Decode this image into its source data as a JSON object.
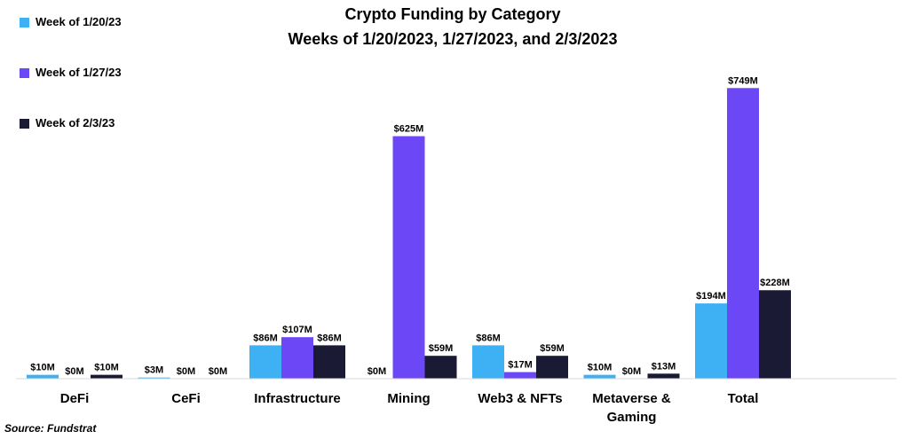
{
  "chart_data": {
    "type": "bar",
    "title": "Crypto Funding by Category",
    "subtitle": "Weeks of 1/20/2023, 1/27/2023, and 2/3/2023",
    "xlabel": "",
    "ylabel": "",
    "unit": "$M",
    "categories": [
      [
        "DeFi"
      ],
      [
        "CeFi"
      ],
      [
        "Infrastructure"
      ],
      [
        "Mining"
      ],
      [
        "Web3 & NFTs"
      ],
      [
        "Metaverse &",
        "Gaming"
      ],
      [
        "Total"
      ]
    ],
    "series": [
      {
        "name": "Week of 1/20/23",
        "color": "#3eb1f5",
        "values": [
          10,
          3,
          86,
          0,
          86,
          10,
          194
        ],
        "labels": [
          "$10M",
          "$3M",
          "$86M",
          "$0M",
          "$86M",
          "$10M",
          "$194M"
        ]
      },
      {
        "name": "Week of 1/27/23",
        "color": "#6c47f5",
        "values": [
          0,
          0,
          107,
          625,
          17,
          0,
          749
        ],
        "labels": [
          "$0M",
          "$0M",
          "$107M",
          "$625M",
          "$17M",
          "$0M",
          "$749M"
        ]
      },
      {
        "name": "Week of 2/3/23",
        "color": "#1a1a35",
        "values": [
          10,
          0,
          86,
          59,
          59,
          13,
          228
        ],
        "labels": [
          "$10M",
          "$0M",
          "$86M",
          "$59M",
          "$59M",
          "$13M",
          "$228M"
        ]
      }
    ],
    "ylim": [
      0,
      800
    ],
    "grid": false,
    "legend_position": "top-left"
  },
  "source": "Source: Fundstrat"
}
